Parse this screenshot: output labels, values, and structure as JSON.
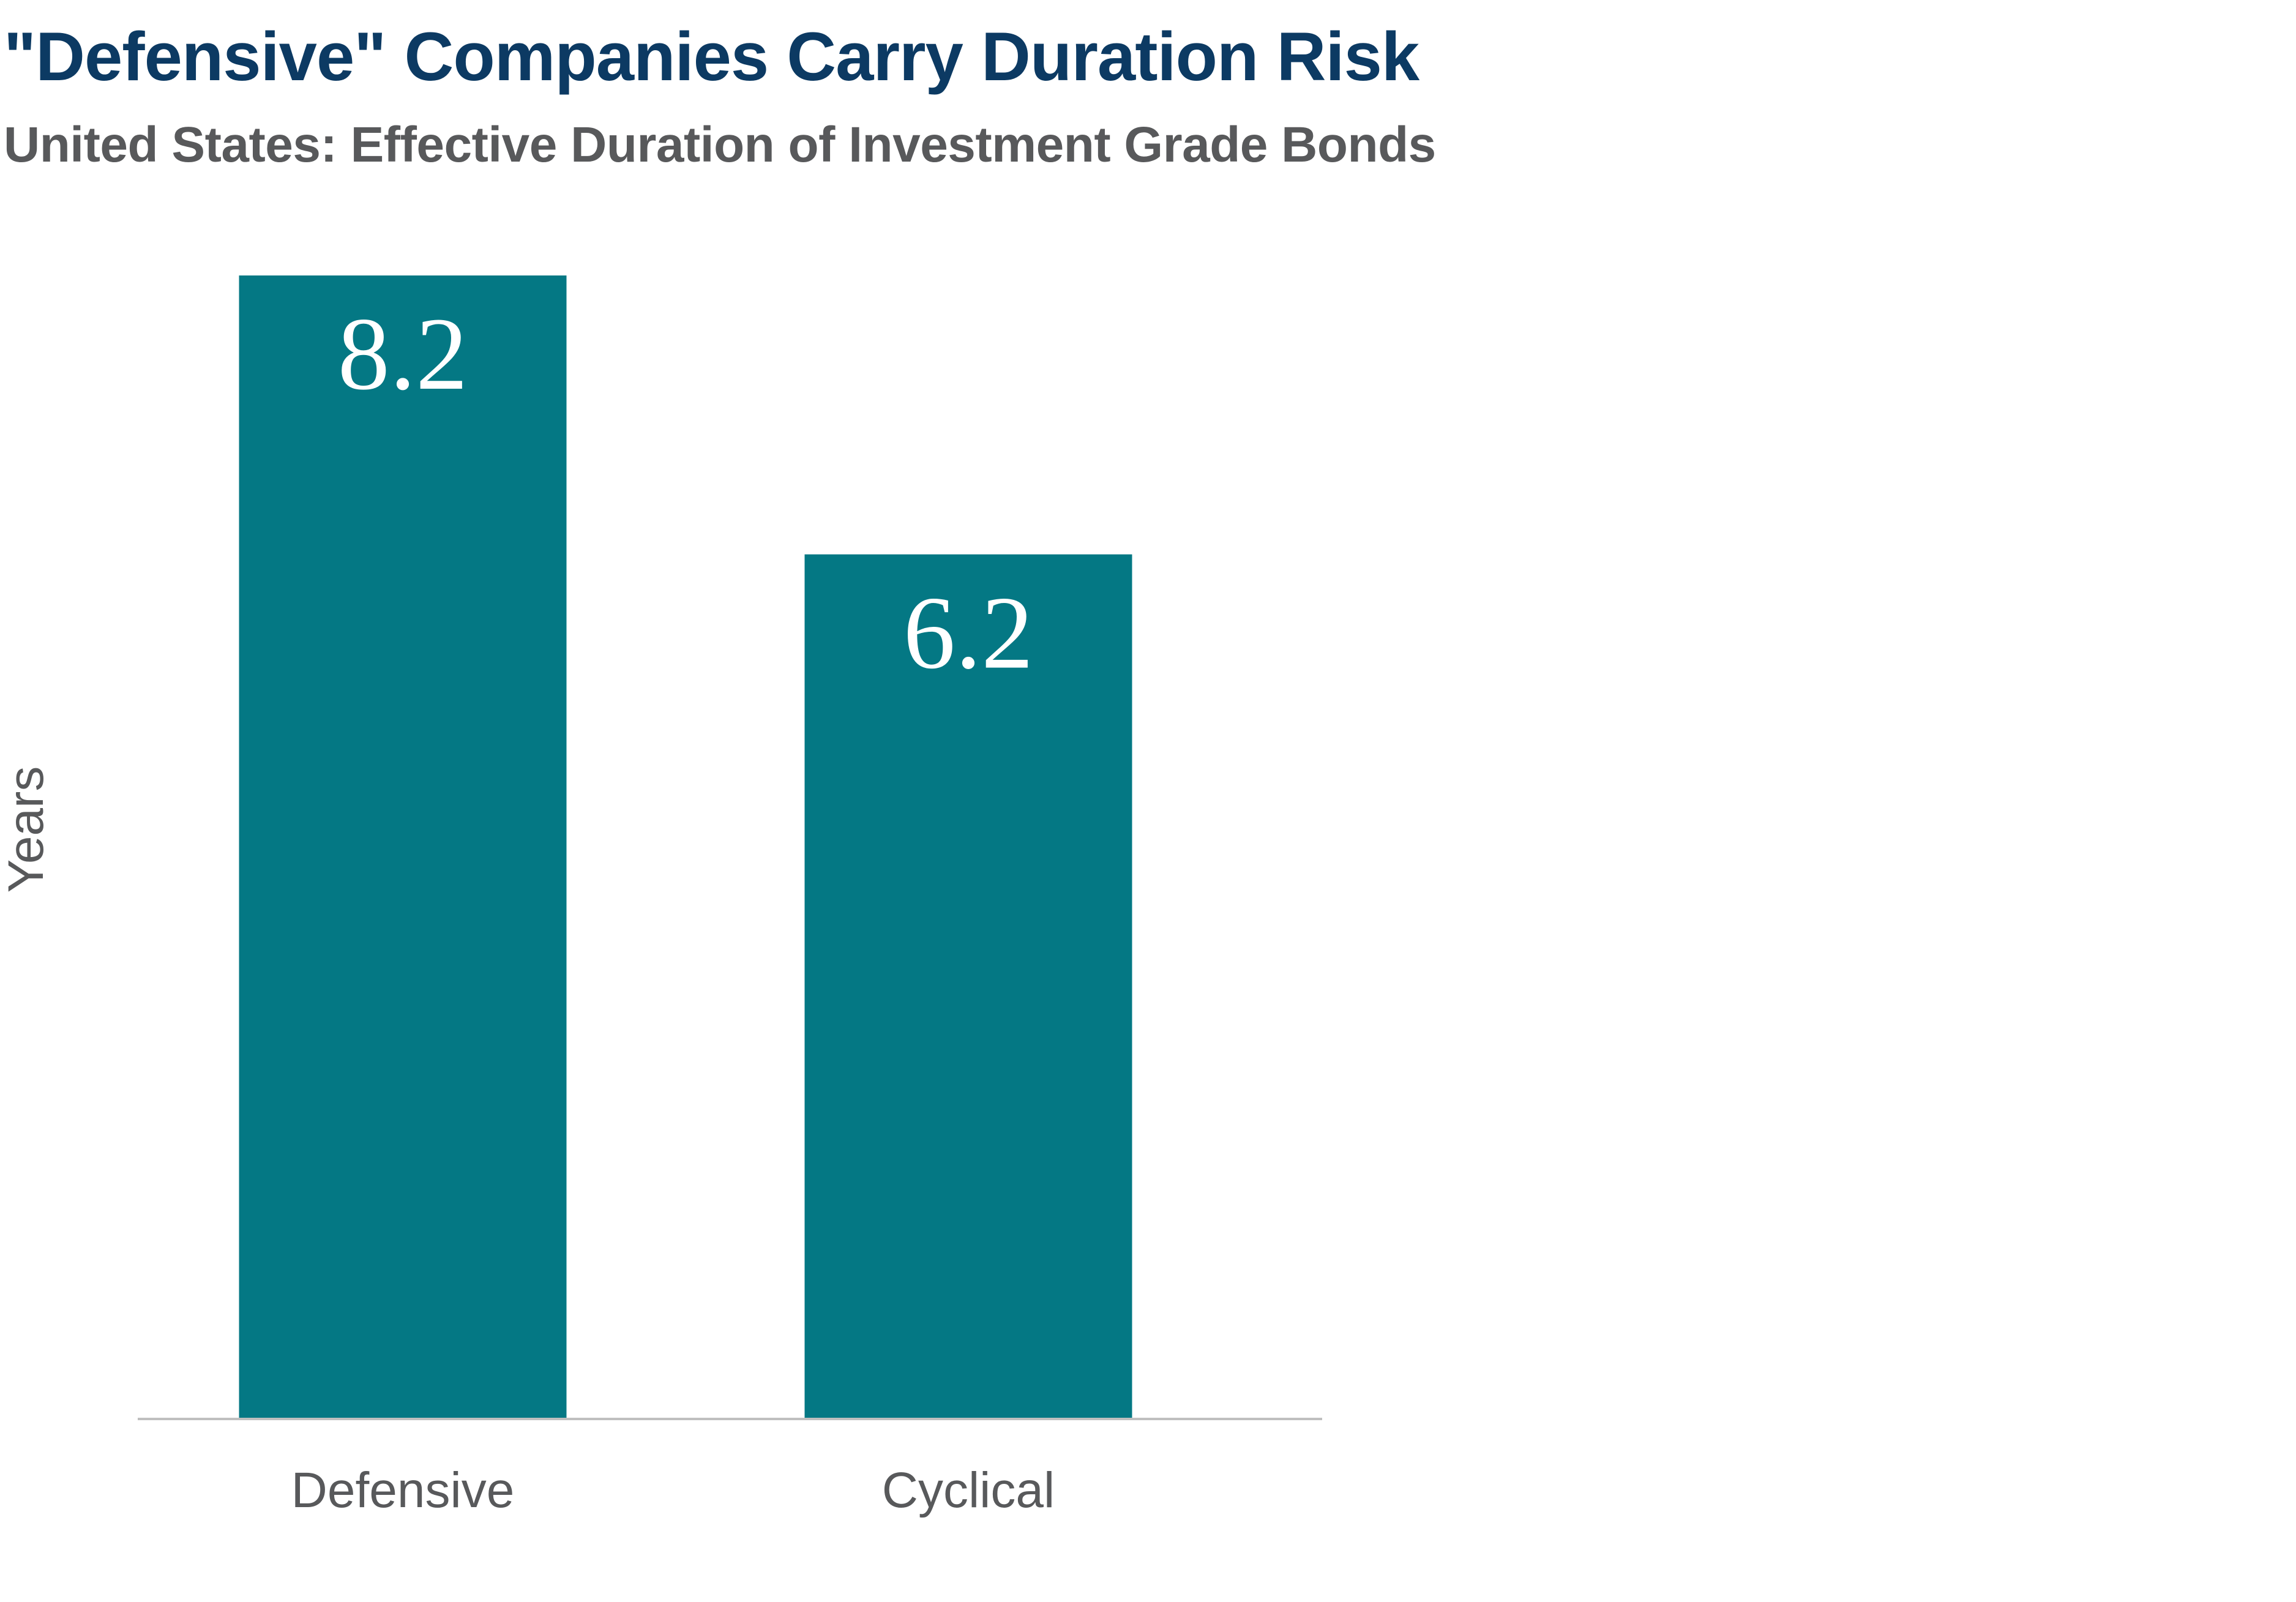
{
  "chart_data": {
    "type": "bar",
    "title": "\"Defensive\" Companies Carry Duration Risk",
    "subtitle": "United States: Effective Duration of Investment Grade Bonds",
    "xlabel": "",
    "ylabel": "Years",
    "categories": [
      "Defensive",
      "Cyclical"
    ],
    "values": [
      8.2,
      6.2
    ],
    "data_labels": [
      "8.2",
      "6.2"
    ],
    "ylim": [
      0,
      8.2
    ],
    "grid": false,
    "legend": "none",
    "bar_color": "#047884",
    "axis_color": "#bfbfbf"
  }
}
